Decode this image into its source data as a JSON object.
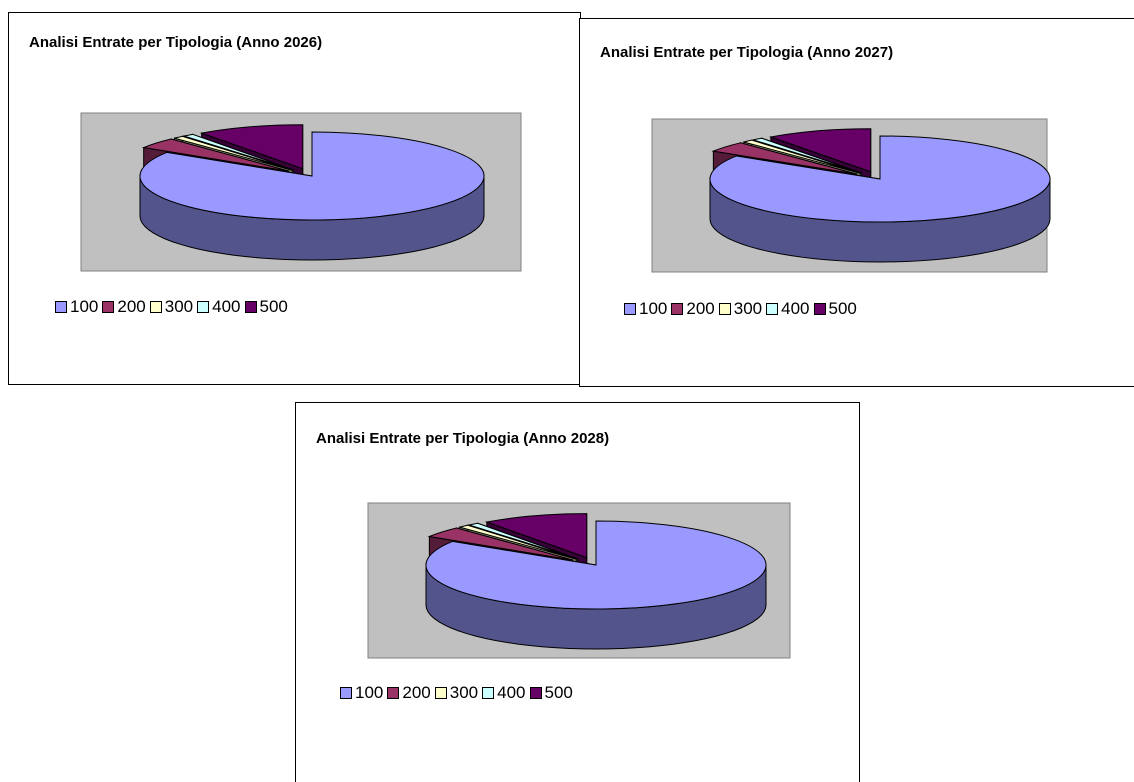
{
  "series_colors": {
    "100": "#9999ff",
    "200": "#993366",
    "300": "#ffffcc",
    "400": "#ccffff",
    "500": "#660066"
  },
  "chart_data": [
    {
      "type": "pie",
      "title": "Analisi Entrate per Tipologia (Anno 2026)",
      "categories": [
        "100",
        "200",
        "300",
        "400",
        "500"
      ],
      "values": [
        84,
        4,
        1,
        1,
        10
      ],
      "legend_position": "bottom"
    },
    {
      "type": "pie",
      "title": "Analisi Entrate per Tipologia (Anno 2027)",
      "categories": [
        "100",
        "200",
        "300",
        "400",
        "500"
      ],
      "values": [
        84,
        4,
        1,
        1,
        10
      ],
      "legend_position": "bottom"
    },
    {
      "type": "pie",
      "title": "Analisi Entrate per Tipologia (Anno 2028)",
      "categories": [
        "100",
        "200",
        "300",
        "400",
        "500"
      ],
      "values": [
        84,
        4,
        1,
        1,
        10
      ],
      "legend_position": "bottom"
    }
  ]
}
